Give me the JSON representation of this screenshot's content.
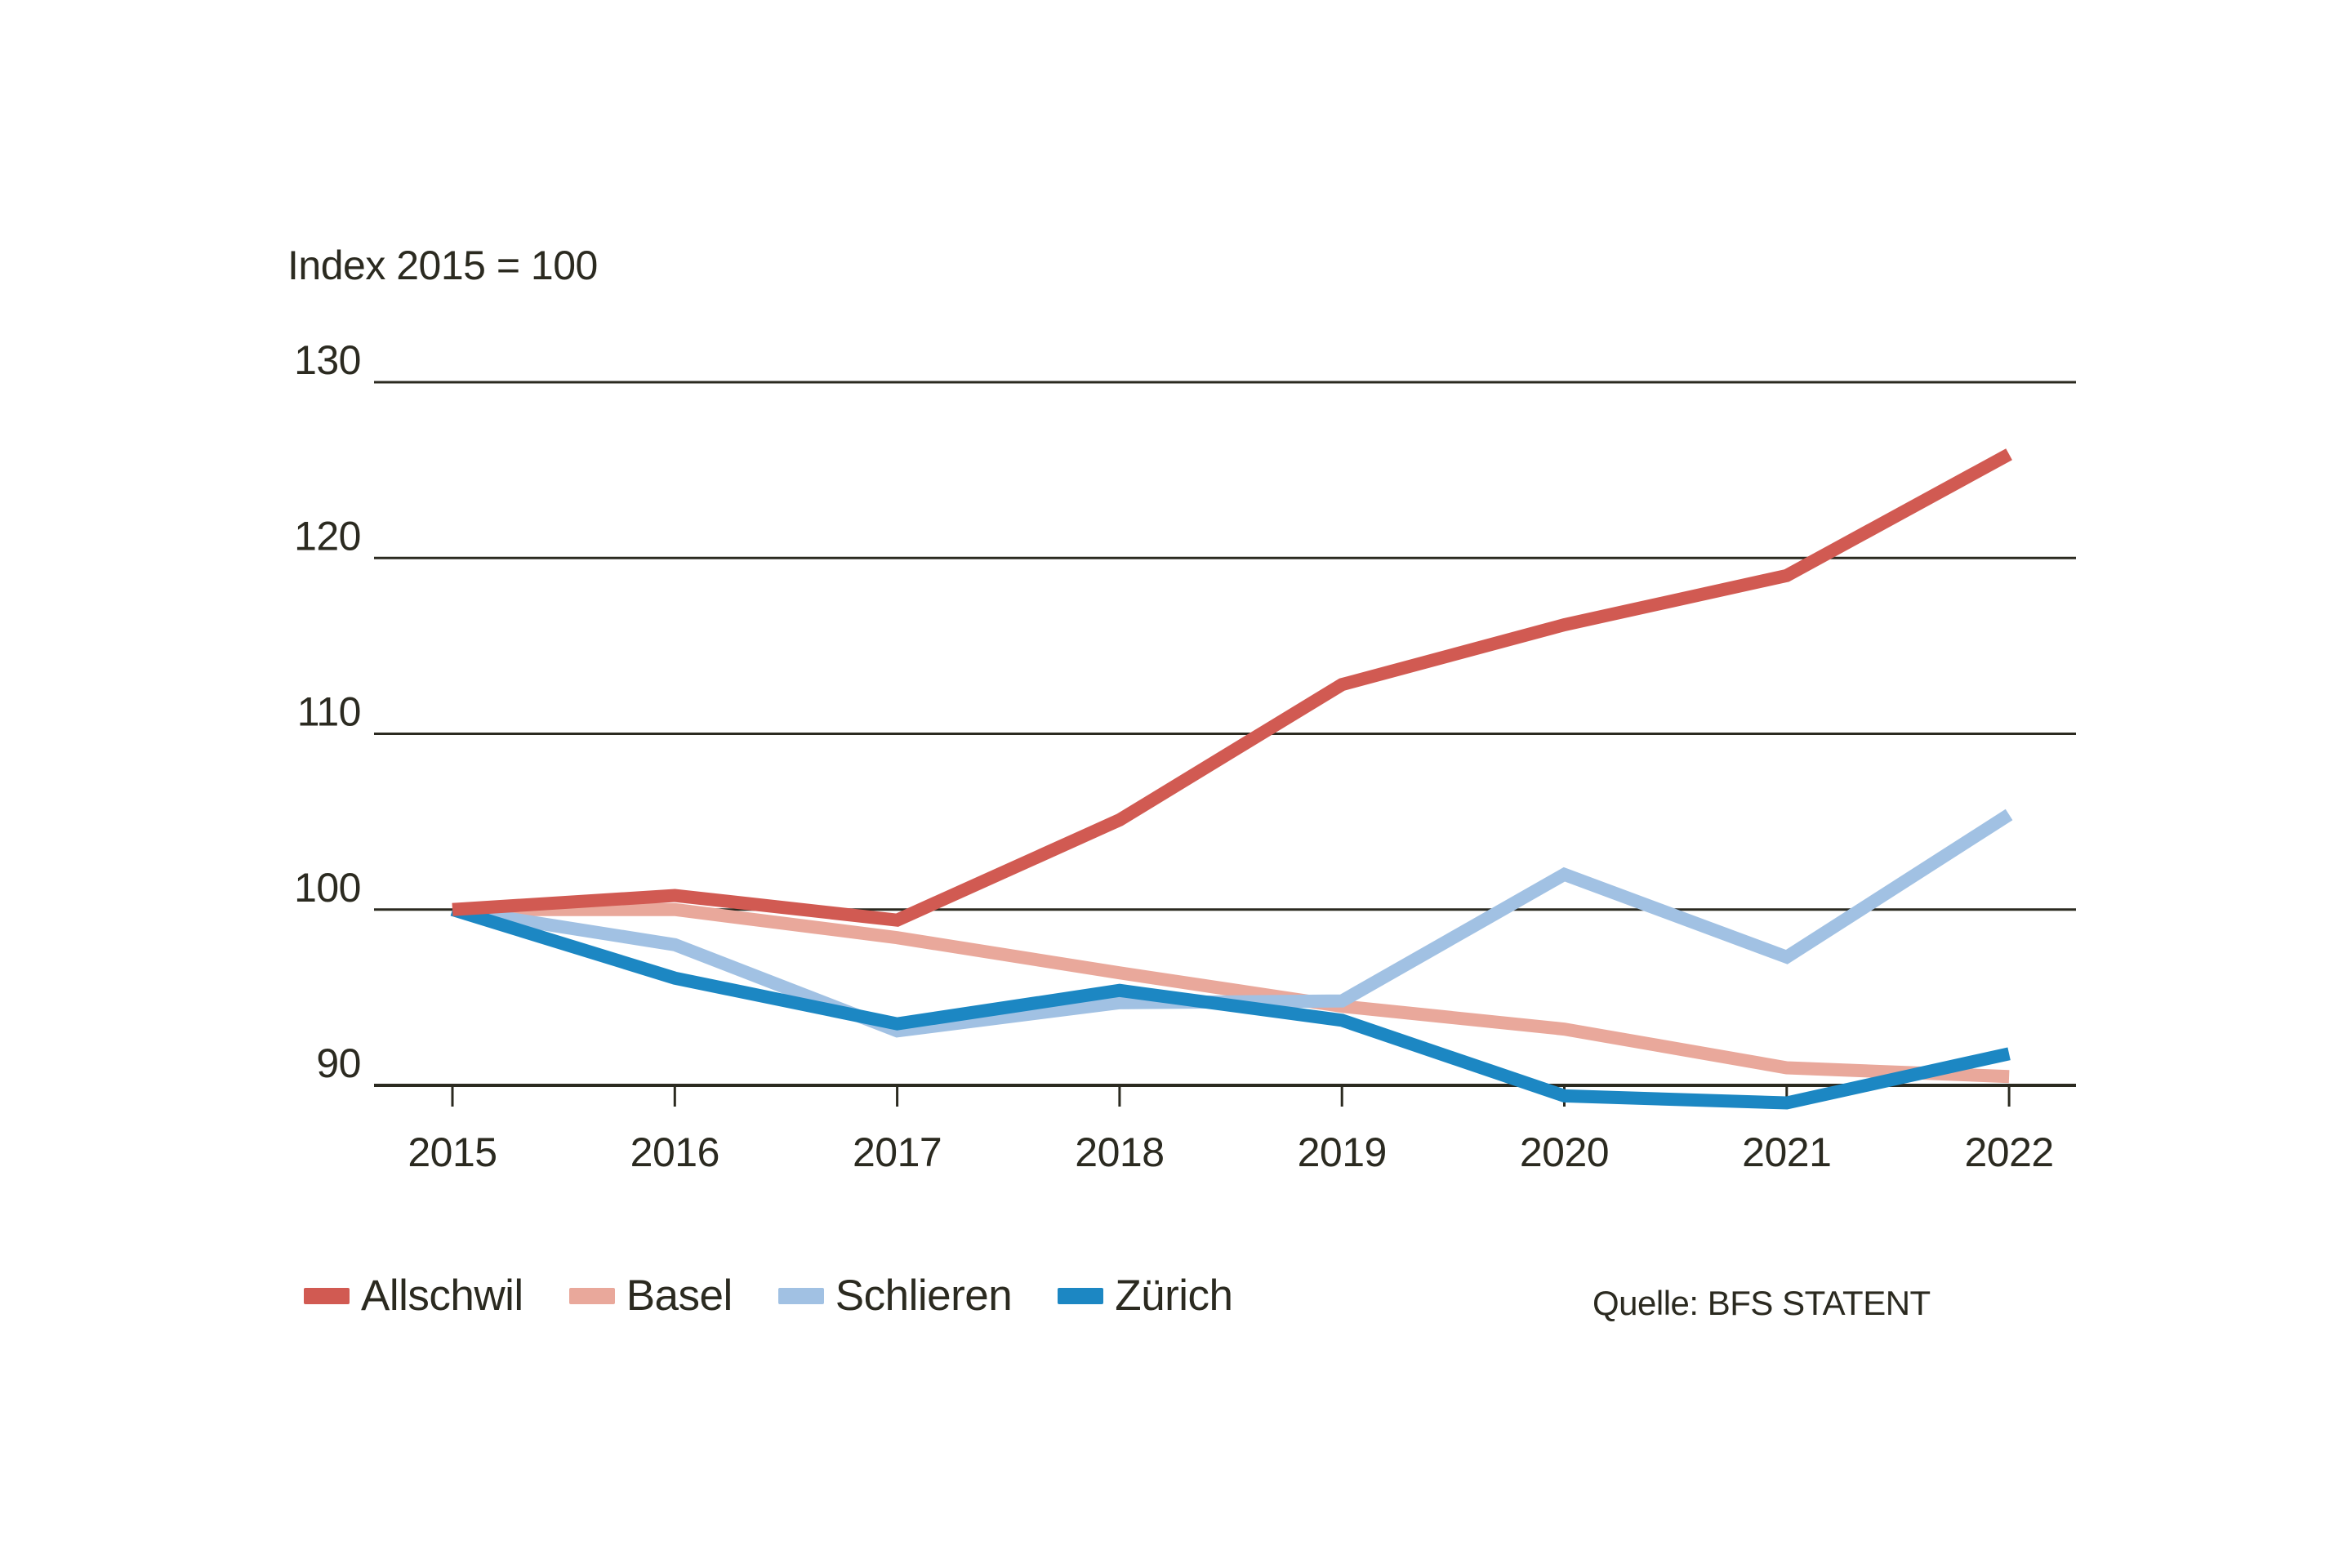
{
  "title": "Index 2015 = 100",
  "source": "Quelle: BFS STATENT",
  "colors": {
    "text": "#2b2a20",
    "grid": "#2b2a20",
    "background": "#ffffff",
    "allschwil": "#d15a52",
    "basel": "#e9a89b",
    "schlieren": "#a1c1e3",
    "zurich": "#1c87c3"
  },
  "chart_data": {
    "type": "line",
    "x": [
      2015,
      2016,
      2017,
      2018,
      2019,
      2020,
      2021,
      2022
    ],
    "series": [
      {
        "name": "Allschwil",
        "color": "#d15a52",
        "values": [
          100,
          100.8,
          99.4,
          105.1,
          112.8,
          116.2,
          119.0,
          125.9
        ]
      },
      {
        "name": "Basel",
        "color": "#e9a89b",
        "values": [
          100,
          100.0,
          98.4,
          96.4,
          94.5,
          93.2,
          91.0,
          90.5
        ]
      },
      {
        "name": "Schlieren",
        "color": "#a1c1e3",
        "values": [
          100,
          98.0,
          93.1,
          94.7,
          94.8,
          102.0,
          97.3,
          105.4
        ]
      },
      {
        "name": "Zürich",
        "color": "#1c87c3",
        "values": [
          100,
          96.1,
          93.5,
          95.4,
          93.7,
          89.4,
          89.0,
          91.8
        ]
      }
    ],
    "draw_order": [
      "Basel",
      "Schlieren",
      "Zürich",
      "Allschwil"
    ],
    "title": "Index 2015 = 100",
    "xlabel": "",
    "ylabel": "",
    "ylim": [
      90,
      130
    ],
    "yticks": [
      90,
      100,
      110,
      120,
      130
    ],
    "grid": "horizontal",
    "legend_position": "bottom"
  }
}
